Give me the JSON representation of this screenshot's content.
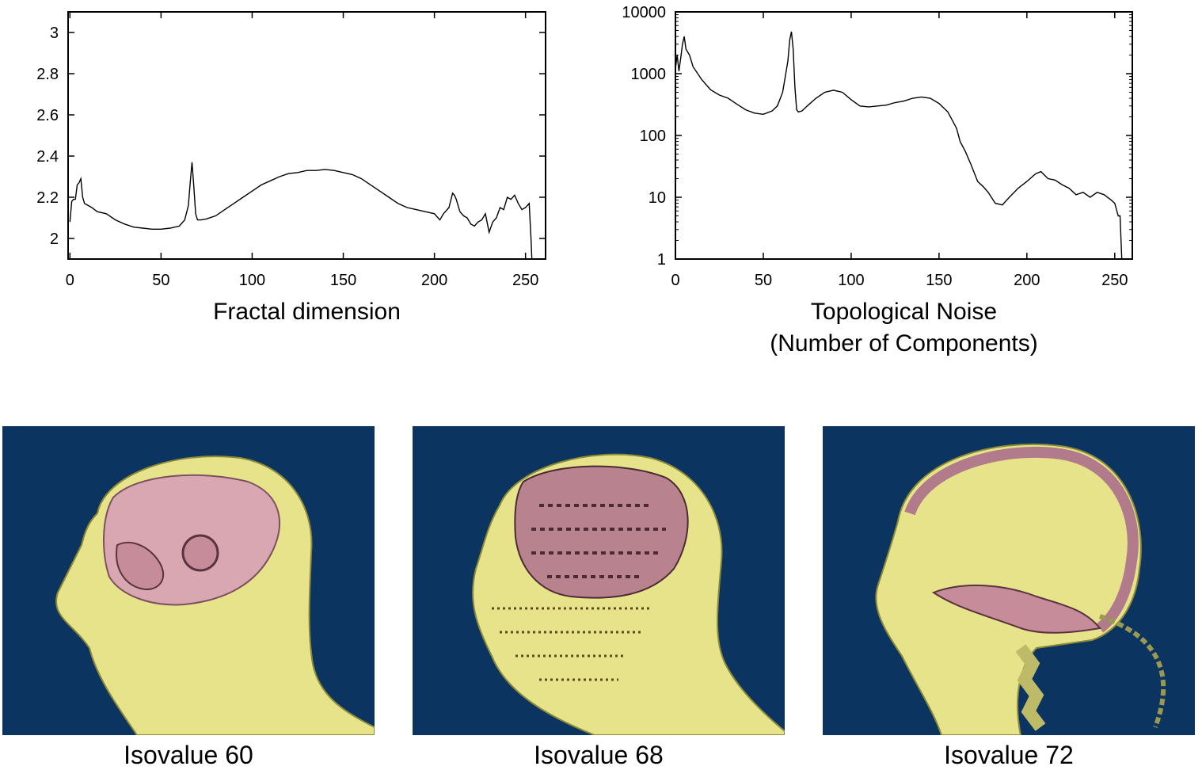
{
  "chart_data": [
    {
      "type": "line",
      "title": "",
      "xlabel": "Fractal dimension",
      "ylabel": "",
      "xlim": [
        -1,
        261
      ],
      "ylim": [
        1.9,
        3.1
      ],
      "log_y": false,
      "grid": false,
      "xticks": [
        0,
        50,
        100,
        150,
        200,
        250
      ],
      "yticks": [
        2,
        2.2,
        2.4,
        2.6,
        2.8,
        3
      ],
      "xtick_labels": [
        "0",
        "50",
        "100",
        "150",
        "200",
        "250"
      ],
      "ytick_labels": [
        "2",
        "2.2",
        "2.4",
        "2.6",
        "2.8",
        "3"
      ],
      "series": [
        {
          "x": [
            0,
            1,
            2,
            3,
            4,
            5,
            6,
            7,
            8,
            10,
            12,
            15,
            20,
            25,
            30,
            35,
            40,
            45,
            50,
            55,
            60,
            63,
            65,
            66,
            67,
            68,
            69,
            70,
            72,
            75,
            80,
            85,
            90,
            95,
            100,
            105,
            110,
            115,
            120,
            125,
            130,
            135,
            140,
            145,
            150,
            155,
            160,
            165,
            170,
            175,
            180,
            185,
            190,
            195,
            200,
            203,
            205,
            208,
            210,
            211,
            212,
            214,
            216,
            218,
            220,
            222,
            224,
            226,
            228,
            230,
            232,
            234,
            236,
            238,
            240,
            242,
            244,
            246,
            248,
            250,
            252,
            253,
            253.5
          ],
          "y": [
            2.08,
            2.18,
            2.19,
            2.19,
            2.26,
            2.27,
            2.29,
            2.2,
            2.17,
            2.16,
            2.15,
            2.13,
            2.12,
            2.09,
            2.07,
            2.055,
            2.05,
            2.045,
            2.045,
            2.05,
            2.06,
            2.09,
            2.16,
            2.27,
            2.37,
            2.25,
            2.12,
            2.09,
            2.09,
            2.095,
            2.11,
            2.14,
            2.17,
            2.2,
            2.23,
            2.26,
            2.28,
            2.3,
            2.315,
            2.32,
            2.33,
            2.33,
            2.335,
            2.33,
            2.32,
            2.31,
            2.29,
            2.26,
            2.23,
            2.2,
            2.17,
            2.15,
            2.14,
            2.13,
            2.12,
            2.09,
            2.12,
            2.15,
            2.22,
            2.21,
            2.19,
            2.13,
            2.11,
            2.1,
            2.07,
            2.06,
            2.08,
            2.09,
            2.12,
            2.03,
            2.08,
            2.1,
            2.15,
            2.14,
            2.2,
            2.19,
            2.21,
            2.17,
            2.14,
            2.15,
            2.17,
            2.0,
            1.9
          ]
        }
      ]
    },
    {
      "type": "line",
      "title": "",
      "xlabel": "Topological Noise",
      "xlabel_line2": "(Number of Components)",
      "ylabel": "",
      "xlim": [
        0,
        260
      ],
      "ylim": [
        1,
        10000
      ],
      "log_y": true,
      "grid": false,
      "xticks": [
        0,
        50,
        100,
        150,
        200,
        250
      ],
      "yticks": [
        1,
        10,
        100,
        1000,
        10000
      ],
      "xtick_labels": [
        "0",
        "50",
        "100",
        "150",
        "200",
        "250"
      ],
      "ytick_labels": [
        "1",
        "10",
        "100",
        "1000",
        "10000"
      ],
      "series": [
        {
          "x": [
            0,
            1,
            2,
            3,
            4,
            5,
            6,
            8,
            10,
            15,
            20,
            25,
            30,
            35,
            40,
            45,
            50,
            55,
            58,
            61,
            64,
            65,
            66,
            67,
            68,
            69,
            70,
            72,
            75,
            80,
            85,
            90,
            95,
            100,
            105,
            110,
            115,
            120,
            125,
            130,
            135,
            140,
            145,
            150,
            155,
            160,
            162,
            165,
            168,
            170,
            172,
            175,
            178,
            182,
            186,
            190,
            195,
            200,
            205,
            208,
            212,
            216,
            220,
            224,
            228,
            232,
            236,
            240,
            244,
            248,
            250,
            252,
            253,
            254
          ],
          "y": [
            1200,
            2000,
            1100,
            1800,
            3000,
            4000,
            2500,
            2000,
            1300,
            800,
            550,
            450,
            400,
            320,
            260,
            230,
            220,
            250,
            300,
            500,
            1600,
            3500,
            4800,
            2500,
            600,
            260,
            240,
            250,
            300,
            400,
            500,
            540,
            500,
            380,
            300,
            290,
            300,
            310,
            340,
            360,
            400,
            420,
            400,
            330,
            240,
            130,
            80,
            55,
            35,
            25,
            18,
            15,
            12,
            8,
            7.5,
            10,
            14,
            18,
            24,
            26,
            20,
            19,
            16,
            14,
            11,
            12,
            10,
            12,
            11,
            9,
            8,
            5,
            5,
            1
          ]
        }
      ]
    }
  ],
  "panels": [
    {
      "caption": "Isovalue 60",
      "colors": {
        "background": "#0b3560",
        "skin": "#e6e38a",
        "brain": "#d9a7b2"
      }
    },
    {
      "caption": "Isovalue 68",
      "colors": {
        "background": "#0b3560",
        "skin": "#e6e38a",
        "brain": "#d9a7b2"
      }
    },
    {
      "caption": "Isovalue 72",
      "colors": {
        "background": "#0b3560",
        "skin": "#e6e38a",
        "brain": "#d9a7b2"
      }
    }
  ]
}
